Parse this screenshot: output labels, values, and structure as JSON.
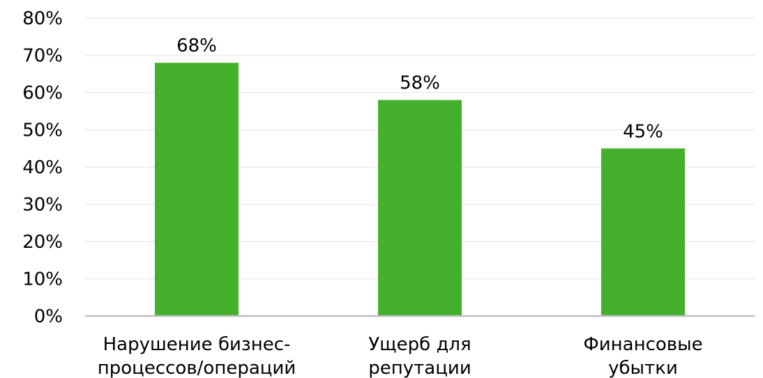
{
  "chart_data": {
    "type": "bar",
    "categories": [
      [
        "Нарушение бизнес-",
        "процессов/операций"
      ],
      [
        "Ущерб для",
        "репутации"
      ],
      [
        "Финансовые",
        "убытки"
      ]
    ],
    "values": [
      68,
      58,
      45
    ],
    "data_labels": [
      "68%",
      "58%",
      "45%"
    ],
    "ylim": [
      0,
      80
    ],
    "yticks": [
      "0%",
      "10%",
      "20%",
      "30%",
      "40%",
      "50%",
      "60%",
      "70%",
      "80%"
    ],
    "grid": true,
    "legend": "none",
    "bar_color": "#44b02c"
  }
}
